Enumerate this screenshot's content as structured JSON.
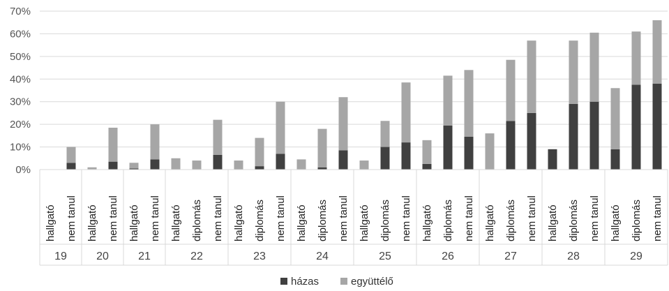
{
  "chart_data": {
    "type": "bar",
    "stacked": true,
    "title": "",
    "xlabel": "",
    "ylabel": "",
    "ylim": [
      0,
      70
    ],
    "yticks": [
      "0%",
      "10%",
      "20%",
      "30%",
      "40%",
      "50%",
      "60%",
      "70%"
    ],
    "grid": true,
    "legend_position": "bottom",
    "colors": {
      "hazas": "#404040",
      "egyutt": "#a6a6a6"
    },
    "groups": [
      {
        "label": "19",
        "categories": [
          "hallgató",
          "nem tanul"
        ]
      },
      {
        "label": "20",
        "categories": [
          "hallgató",
          "nem tanul"
        ]
      },
      {
        "label": "21",
        "categories": [
          "hallgató",
          "nem tanul"
        ]
      },
      {
        "label": "22",
        "categories": [
          "hallgató",
          "diplomás",
          "nem tanul"
        ]
      },
      {
        "label": "23",
        "categories": [
          "hallgató",
          "diplomás",
          "nem tanul"
        ]
      },
      {
        "label": "24",
        "categories": [
          "hallgató",
          "diplomás",
          "nem tanul"
        ]
      },
      {
        "label": "25",
        "categories": [
          "hallgató",
          "diplomás",
          "nem tanul"
        ]
      },
      {
        "label": "26",
        "categories": [
          "hallgató",
          "diplomás",
          "nem tanul"
        ]
      },
      {
        "label": "27",
        "categories": [
          "hallgató",
          "diplomás",
          "nem tanul"
        ]
      },
      {
        "label": "28",
        "categories": [
          "hallgató",
          "diplomás",
          "nem tanul"
        ]
      },
      {
        "label": "29",
        "categories": [
          "hallgató",
          "diplomás",
          "nem tanul"
        ]
      }
    ],
    "series": [
      {
        "name": "házas",
        "values": [
          0,
          3,
          0,
          3.5,
          0.5,
          4.5,
          0,
          0,
          6.5,
          0,
          1.5,
          7,
          0,
          1,
          8.5,
          0,
          10,
          12,
          2.5,
          19.5,
          14.5,
          0,
          21.5,
          25,
          9,
          29,
          30,
          9,
          37.5,
          38
        ]
      },
      {
        "name": "együttélő",
        "values": [
          0,
          7,
          1,
          15,
          2.5,
          15.5,
          5,
          4,
          15.5,
          4,
          12.5,
          23,
          4.5,
          17,
          23.5,
          4,
          11.5,
          26.5,
          10.5,
          22,
          29.5,
          16,
          27,
          32,
          0,
          28,
          30.5,
          27,
          23.5,
          28
        ]
      }
    ]
  }
}
